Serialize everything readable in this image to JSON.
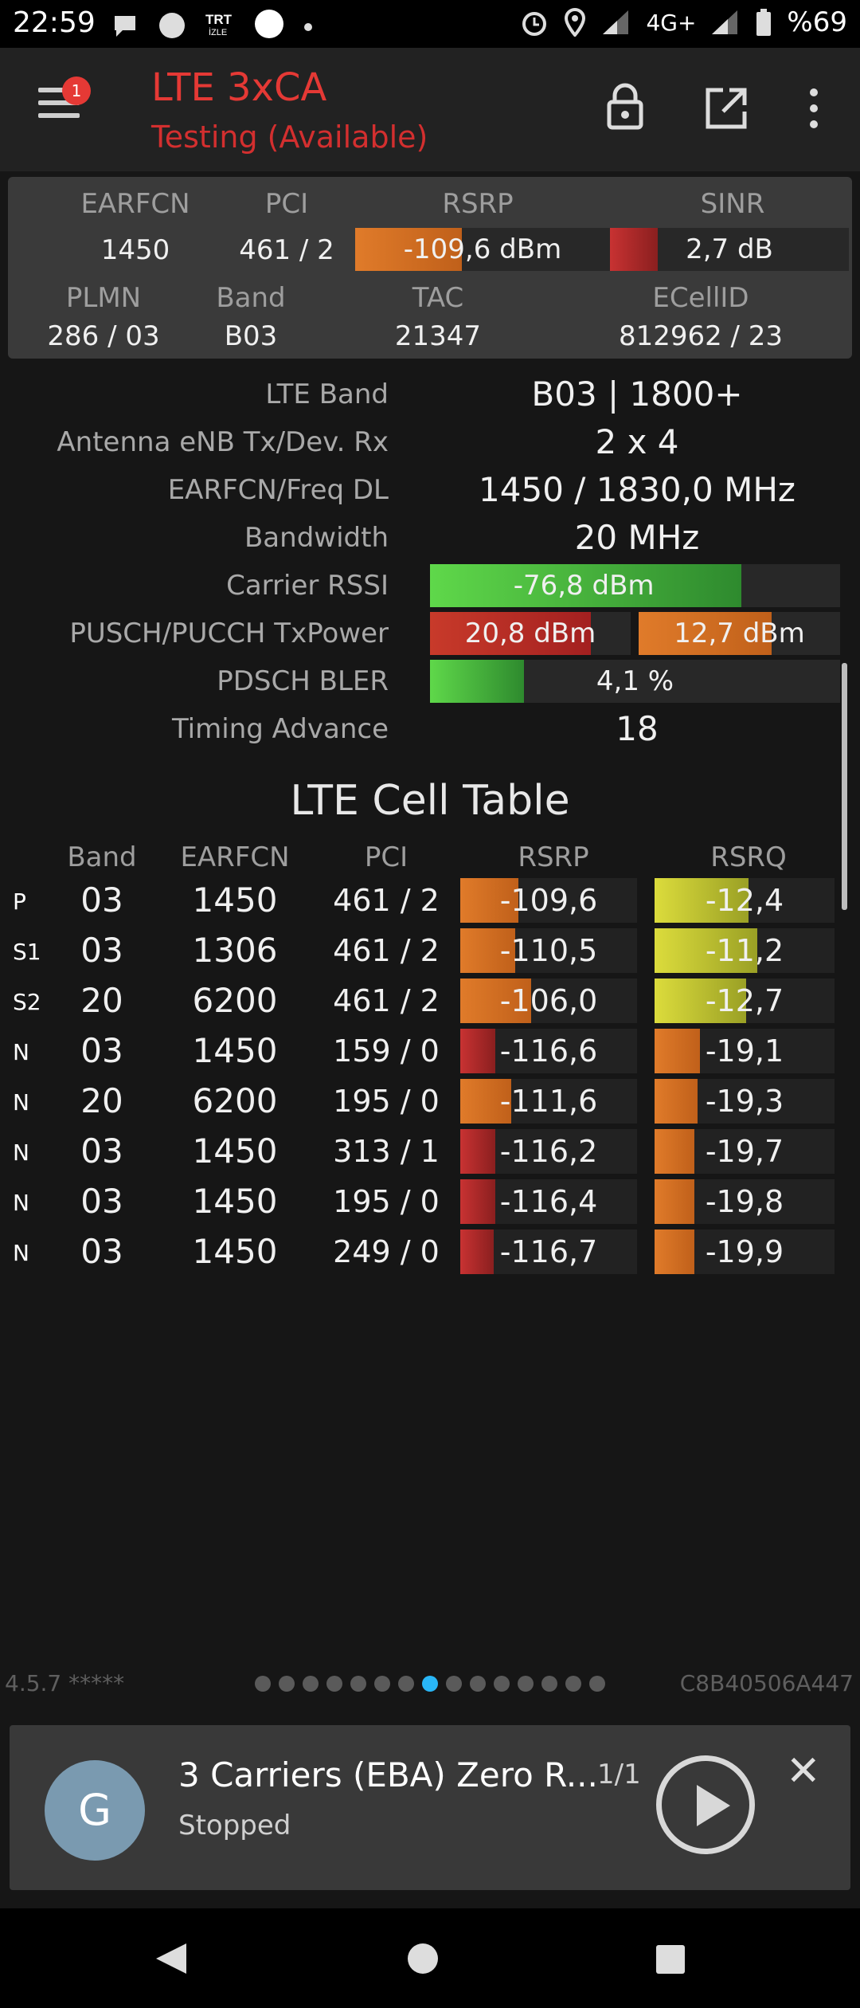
{
  "status_bar": {
    "time": "22:59",
    "network": "4G+",
    "battery": "%69",
    "icons": [
      "chat-icon",
      "circle-icon",
      "trt-izle-icon",
      "circle-icon",
      "dot-icon",
      "alarm-icon",
      "location-icon",
      "signal-icon",
      "signal-icon",
      "battery-icon"
    ],
    "trt_text": "TRT",
    "izle_text": "İZLE"
  },
  "app_bar": {
    "title": "LTE 3xCA",
    "subtitle": "Testing (Available)",
    "badge": "1",
    "title_color": "#e53935"
  },
  "summary": {
    "headers": {
      "earfcn": "EARFCN",
      "pci": "PCI",
      "rsrp": "RSRP",
      "sinr": "SINR",
      "plmn": "PLMN",
      "band": "Band",
      "tac": "TAC",
      "ecellid": "ECellID"
    },
    "earfcn": "1450",
    "pci": "461 / 2",
    "rsrp": "-109,6 dBm",
    "rsrp_fill": 0.42,
    "sinr": "2,7 dB",
    "sinr_fill": 0.2,
    "plmn": "286 / 03",
    "band": "B03",
    "tac": "21347",
    "ecellid": "812962 / 23"
  },
  "details": [
    {
      "label": "LTE Band",
      "value": "B03 | 1800+"
    },
    {
      "label": "Antenna eNB Tx/Dev. Rx",
      "value": "2 x 4"
    },
    {
      "label": "EARFCN/Freq DL",
      "value": "1450 / 1830,0 MHz"
    },
    {
      "label": "Bandwidth",
      "value": "20 MHz"
    },
    {
      "label": "Carrier RSSI",
      "value": "-76,8 dBm",
      "fill": 0.76
    },
    {
      "label": "PUSCH/PUCCH TxPower",
      "value": "20,8 dBm",
      "value2": "12,7 dBm",
      "fill": 0.8,
      "fill2": 0.66
    },
    {
      "label": "PDSCH BLER",
      "value": "4,1 %",
      "fill": 0.23
    },
    {
      "label": "Timing Advance",
      "value": "18"
    }
  ],
  "cell_table": {
    "title": "LTE Cell Table",
    "headers": {
      "band": "Band",
      "earfcn": "EARFCN",
      "pci": "PCI",
      "rsrp": "RSRP",
      "rsrq": "RSRQ"
    },
    "rows": [
      {
        "type": "P",
        "band": "03",
        "earfcn": "1450",
        "pci": "461 / 2",
        "rsrp": "-109,6",
        "rsrp_fill": 0.33,
        "rsrp_color": "orange",
        "rsrq": "-12,4",
        "rsrq_fill": 0.52,
        "rsrq_color": "yellow"
      },
      {
        "type": "S1",
        "band": "03",
        "earfcn": "1306",
        "pci": "461 / 2",
        "rsrp": "-110,5",
        "rsrp_fill": 0.31,
        "rsrp_color": "orange",
        "rsrq": "-11,2",
        "rsrq_fill": 0.57,
        "rsrq_color": "yellow"
      },
      {
        "type": "S2",
        "band": "20",
        "earfcn": "6200",
        "pci": "461 / 2",
        "rsrp": "-106,0",
        "rsrp_fill": 0.4,
        "rsrp_color": "orange",
        "rsrq": "-12,7",
        "rsrq_fill": 0.51,
        "rsrq_color": "yellow"
      },
      {
        "type": "N",
        "band": "03",
        "earfcn": "1450",
        "pci": "159 / 0",
        "rsrp": "-116,6",
        "rsrp_fill": 0.2,
        "rsrp_color": "red",
        "rsrq": "-19,1",
        "rsrq_fill": 0.25,
        "rsrq_color": "orange"
      },
      {
        "type": "N",
        "band": "20",
        "earfcn": "6200",
        "pci": "195 / 0",
        "rsrp": "-111,6",
        "rsrp_fill": 0.29,
        "rsrp_color": "orange",
        "rsrq": "-19,3",
        "rsrq_fill": 0.24,
        "rsrq_color": "orange"
      },
      {
        "type": "N",
        "band": "03",
        "earfcn": "1450",
        "pci": "313 / 1",
        "rsrp": "-116,2",
        "rsrp_fill": 0.2,
        "rsrp_color": "red",
        "rsrq": "-19,7",
        "rsrq_fill": 0.22,
        "rsrq_color": "orange"
      },
      {
        "type": "N",
        "band": "03",
        "earfcn": "1450",
        "pci": "195 / 0",
        "rsrp": "-116,4",
        "rsrp_fill": 0.2,
        "rsrp_color": "red",
        "rsrq": "-19,8",
        "rsrq_fill": 0.22,
        "rsrq_color": "orange"
      },
      {
        "type": "N",
        "band": "03",
        "earfcn": "1450",
        "pci": "249 / 0",
        "rsrp": "-116,7",
        "rsrp_fill": 0.19,
        "rsrp_color": "red",
        "rsrq": "-19,9",
        "rsrq_fill": 0.22,
        "rsrq_color": "orange"
      }
    ]
  },
  "footer": {
    "version": "4.5.7 *****",
    "device_id": "C8B40506A447",
    "page_count": 15,
    "active_page": 7
  },
  "player": {
    "avatar": "G",
    "title": "3 Carriers (EBA) Zero R...",
    "status": "Stopped",
    "count": "1/1"
  }
}
